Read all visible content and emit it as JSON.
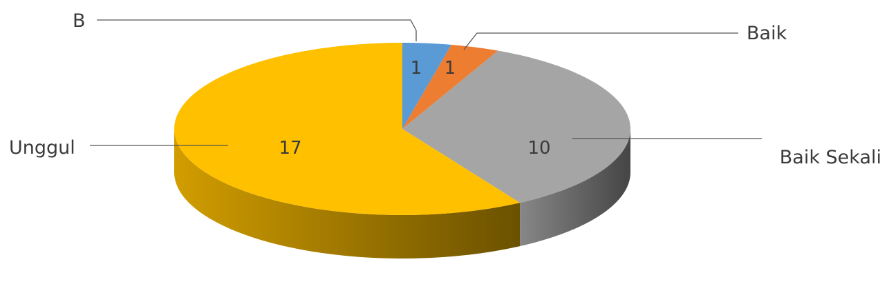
{
  "chart_data": {
    "type": "pie",
    "style": "3d",
    "title": "",
    "slices": [
      {
        "label": "B",
        "value": 1,
        "color": "#5B9BD5"
      },
      {
        "label": "Baik",
        "value": 1,
        "color": "#ED7D31"
      },
      {
        "label": "Baik Sekali",
        "value": 10,
        "color": "#A5A5A5"
      },
      {
        "label": "Unggul",
        "value": 17,
        "color": "#FFC000"
      }
    ],
    "data_labels": true,
    "legend": "none"
  }
}
